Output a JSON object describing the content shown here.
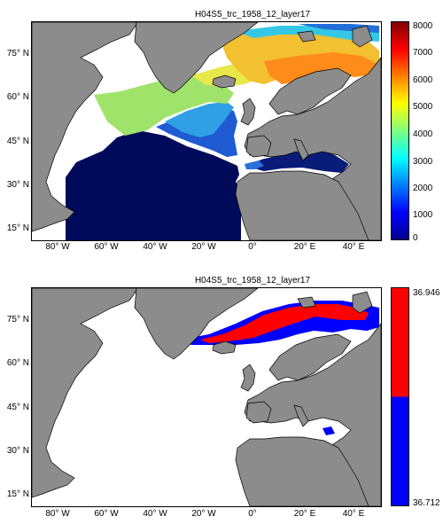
{
  "figures": [
    {
      "title": "H04S5_trc_1958_12_layer17",
      "colorbar_ticks": [
        "0",
        "1000",
        "2000",
        "3000",
        "4000",
        "5000",
        "6000",
        "7000",
        "8000"
      ]
    },
    {
      "title": "H04S5_trc_1958_12_layer17",
      "colorbar_ticks": [
        "36.946",
        "36.712"
      ]
    }
  ],
  "axes": {
    "lat_labels": [
      "75° N",
      "60° N",
      "45° N",
      "30° N",
      "15° N"
    ],
    "lon_labels": [
      "80° W",
      "60° W",
      "40° W",
      "20° W",
      "0°",
      "20° E",
      "40° E"
    ]
  },
  "chart_data": [
    {
      "type": "heatmap",
      "title": "H04S5_trc_1958_12_layer17",
      "xlabel": "",
      "ylabel": "",
      "xlim": [
        -90,
        50
      ],
      "ylim": [
        10,
        86
      ],
      "x_ticks": [
        -80,
        -60,
        -40,
        -20,
        0,
        20,
        40
      ],
      "y_ticks": [
        15,
        30,
        45,
        60,
        75
      ],
      "colorbar": {
        "colormap": "jet",
        "range": [
          0,
          8000
        ],
        "ticks": [
          0,
          1000,
          2000,
          3000,
          4000,
          5000,
          6000,
          7000,
          8000
        ]
      },
      "land_color": "#8c8c8c",
      "approx_regions": [
        {
          "region": "subtropical North Atlantic (10-35°N, 75-20°W)",
          "value": 0
        },
        {
          "region": "mid-latitude North Atlantic (40-55°N)",
          "value": 400
        },
        {
          "region": "subpolar North Atlantic (55-65°N)",
          "value": 1500
        },
        {
          "region": "Greenland and Norwegian Seas",
          "value": 2000
        },
        {
          "region": "Barents Sea near Svalbard",
          "value": 2800
        },
        {
          "region": "Mediterranean Sea",
          "value": 200
        }
      ]
    },
    {
      "type": "heatmap",
      "title": "H04S5_trc_1958_12_layer17",
      "xlabel": "",
      "ylabel": "",
      "xlim": [
        -90,
        50
      ],
      "ylim": [
        10,
        86
      ],
      "x_ticks": [
        -80,
        -60,
        -40,
        -20,
        0,
        20,
        40
      ],
      "y_ticks": [
        15,
        30,
        45,
        60,
        75
      ],
      "colorbar": {
        "colors": [
          "#0000ff",
          "#ff0000"
        ],
        "range": [
          36.712,
          36.946
        ],
        "ticks": [
          36.712,
          36.946
        ]
      },
      "land_color": "#8c8c8c",
      "approx_regions": [
        {
          "region": "Barents Sea core (74-80°N, 20-40°E)",
          "value": 36.9
        },
        {
          "region": "Barents/Norwegian Sea margin (68-74°N)",
          "value": 36.75
        },
        {
          "region": "eastern Mediterranean patches",
          "value": 36.75
        }
      ]
    }
  ]
}
